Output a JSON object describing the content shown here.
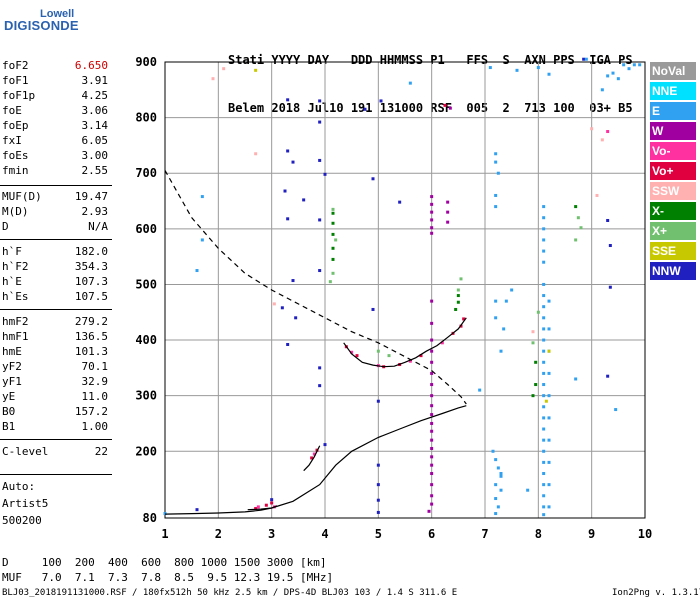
{
  "logo": {
    "line1": "Lowell",
    "line2": "DIGISONDE"
  },
  "header": {
    "row1": "Stati YYYY DAY   DDD HHMMSS P1   FFS  S  AXN PPS  IGA PS",
    "row2": "Belem 2018 Jul10 191 131000 RSF  005  2  713 100  03+ B5"
  },
  "params": [
    {
      "name": "foF2",
      "value": "6.650",
      "color": "#cc0000",
      "top": 58
    },
    {
      "name": "foF1",
      "value": "3.91",
      "top": 73
    },
    {
      "name": "foF1p",
      "value": "4.25",
      "top": 88
    },
    {
      "name": "foE",
      "value": "3.06",
      "top": 103
    },
    {
      "name": "foEp",
      "value": "3.14",
      "top": 118
    },
    {
      "name": "fxI",
      "value": "6.05",
      "top": 133
    },
    {
      "name": "foEs",
      "value": "3.00",
      "top": 148
    },
    {
      "name": "fmin",
      "value": "2.55",
      "top": 163
    },
    {
      "name": "MUF(D)",
      "value": "19.47",
      "top": 189
    },
    {
      "name": "M(D)",
      "value": "2.93",
      "top": 204
    },
    {
      "name": "D",
      "value": "N/A",
      "top": 219
    },
    {
      "name": "h`F",
      "value": "182.0",
      "top": 244
    },
    {
      "name": "h`F2",
      "value": "354.3",
      "top": 259
    },
    {
      "name": "h`E",
      "value": "107.3",
      "top": 274
    },
    {
      "name": "h`Es",
      "value": "107.5",
      "top": 289
    },
    {
      "name": "hmF2",
      "value": "279.2",
      "top": 314
    },
    {
      "name": "hmF1",
      "value": "136.5",
      "top": 329
    },
    {
      "name": "hmE",
      "value": "101.3",
      "top": 344
    },
    {
      "name": "yF2",
      "value": "70.1",
      "top": 359
    },
    {
      "name": "yF1",
      "value": "32.9",
      "top": 374
    },
    {
      "name": "yE",
      "value": "11.0",
      "top": 389
    },
    {
      "name": "B0",
      "value": "157.2",
      "top": 404
    },
    {
      "name": "B1",
      "value": "1.00",
      "top": 419
    },
    {
      "name": "C-level",
      "value": "22",
      "top": 444
    }
  ],
  "auto": {
    "line1": "Auto:",
    "line2": "Artist5",
    "line3": "500200"
  },
  "legend": [
    {
      "label": "NoVal",
      "color": "#9a9a9a"
    },
    {
      "label": "NNE",
      "color": "#00e0ff"
    },
    {
      "label": "E",
      "color": "#30a0f0"
    },
    {
      "label": "W",
      "color": "#a000a0"
    },
    {
      "label": "Vo-",
      "color": "#ff30a0"
    },
    {
      "label": "Vo+",
      "color": "#e00040"
    },
    {
      "label": "SSW",
      "color": "#ffb0b0"
    },
    {
      "label": "X-",
      "color": "#008000"
    },
    {
      "label": "X+",
      "color": "#70c070"
    },
    {
      "label": "SSE",
      "color": "#c8c800"
    },
    {
      "label": "NNW",
      "color": "#2020c0"
    }
  ],
  "footer": {
    "row1": "D     100  200  400  600  800 1000 1500 3000 [km]",
    "row2": "MUF   7.0  7.1  7.3  7.8  8.5  9.5 12.3 19.5 [MHz]",
    "filename": "BLJ03_2018191131000.RSF / 180fx512h 50 kHz 2.5 km / DPS-4D BLJ03 103 / 1.4 S 311.6 E",
    "version": "Ion2Png v. 1.3.17"
  },
  "chart_data": {
    "type": "scatter",
    "title": "",
    "xlabel": "",
    "ylabel": "",
    "xlim": [
      1,
      10
    ],
    "ylim": [
      80,
      900
    ],
    "x_ticks": [
      1,
      2,
      3,
      4,
      5,
      6,
      7,
      8,
      9,
      10
    ],
    "y_ticks": [
      80,
      200,
      300,
      400,
      500,
      600,
      700,
      800,
      900
    ],
    "curves": [
      {
        "name": "dashed-profile",
        "style": "dashed",
        "points": [
          [
            1.0,
            705
          ],
          [
            1.5,
            620
          ],
          [
            2.0,
            565
          ],
          [
            2.5,
            520
          ],
          [
            3.0,
            490
          ],
          [
            3.5,
            465
          ],
          [
            4.0,
            440
          ],
          [
            4.5,
            415
          ],
          [
            5.0,
            395
          ],
          [
            5.5,
            370
          ],
          [
            6.0,
            345
          ],
          [
            6.3,
            320
          ],
          [
            6.55,
            298
          ],
          [
            6.65,
            285
          ]
        ]
      },
      {
        "name": "true-height-profile",
        "style": "solid",
        "points": [
          [
            1.0,
            87
          ],
          [
            1.5,
            88
          ],
          [
            2.0,
            89
          ],
          [
            2.5,
            91
          ],
          [
            2.8,
            94
          ],
          [
            3.0,
            98
          ],
          [
            3.4,
            110
          ],
          [
            3.9,
            140
          ],
          [
            4.2,
            175
          ],
          [
            4.5,
            200
          ],
          [
            5.0,
            225
          ],
          [
            5.4,
            240
          ],
          [
            5.8,
            255
          ],
          [
            6.2,
            268
          ],
          [
            6.5,
            278
          ],
          [
            6.65,
            282
          ]
        ]
      },
      {
        "name": "F2-trace",
        "style": "solid",
        "points": [
          [
            4.35,
            395
          ],
          [
            4.5,
            375
          ],
          [
            4.7,
            360
          ],
          [
            4.9,
            355
          ],
          [
            5.1,
            352
          ],
          [
            5.3,
            353
          ],
          [
            5.5,
            360
          ],
          [
            5.7,
            368
          ],
          [
            5.9,
            380
          ],
          [
            6.1,
            390
          ],
          [
            6.3,
            405
          ],
          [
            6.5,
            420
          ],
          [
            6.65,
            440
          ]
        ]
      },
      {
        "name": "F1-trace",
        "style": "solid",
        "points": [
          [
            3.6,
            165
          ],
          [
            3.7,
            175
          ],
          [
            3.8,
            190
          ],
          [
            3.9,
            210
          ]
        ]
      },
      {
        "name": "E-trace",
        "style": "solid",
        "points": [
          [
            2.55,
            95
          ],
          [
            2.8,
            96
          ],
          [
            3.0,
            98
          ],
          [
            3.1,
            102
          ]
        ]
      }
    ],
    "echoes": [
      {
        "color": "#2020c0",
        "points": [
          [
            3.3,
            832
          ],
          [
            3.9,
            830
          ],
          [
            4.75,
            815
          ],
          [
            3.9,
            792
          ],
          [
            3.3,
            740
          ],
          [
            3.4,
            720
          ],
          [
            3.9,
            723
          ],
          [
            4.0,
            698
          ],
          [
            4.9,
            690
          ],
          [
            3.25,
            668
          ],
          [
            3.6,
            652
          ],
          [
            5.4,
            648
          ],
          [
            3.3,
            618
          ],
          [
            3.9,
            616
          ],
          [
            3.4,
            507
          ],
          [
            3.9,
            525
          ],
          [
            3.2,
            458
          ],
          [
            3.45,
            440
          ],
          [
            3.3,
            392
          ],
          [
            3.9,
            350
          ],
          [
            3.9,
            318
          ],
          [
            5.0,
            290
          ],
          [
            4.0,
            212
          ],
          [
            5.0,
            175
          ],
          [
            5.0,
            140
          ],
          [
            5.0,
            112
          ],
          [
            5.0,
            90
          ],
          [
            3.0,
            113
          ],
          [
            1.6,
            95
          ],
          [
            9.3,
            615
          ],
          [
            9.35,
            570
          ],
          [
            9.35,
            495
          ],
          [
            9.3,
            335
          ],
          [
            8.85,
            905
          ],
          [
            5.05,
            830
          ],
          [
            4.9,
            455
          ]
        ]
      },
      {
        "color": "#a000a0",
        "points": [
          [
            6.0,
            658
          ],
          [
            6.0,
            644
          ],
          [
            6.0,
            630
          ],
          [
            6.0,
            616
          ],
          [
            6.0,
            602
          ],
          [
            6.0,
            592
          ],
          [
            6.3,
            648
          ],
          [
            6.3,
            630
          ],
          [
            6.3,
            612
          ],
          [
            6.0,
            470
          ],
          [
            6.0,
            430
          ],
          [
            6.0,
            400
          ],
          [
            6.0,
            380
          ],
          [
            6.0,
            360
          ],
          [
            6.0,
            340
          ],
          [
            6.0,
            320
          ],
          [
            6.0,
            300
          ],
          [
            6.0,
            282
          ],
          [
            6.0,
            266
          ],
          [
            6.0,
            250
          ],
          [
            6.0,
            236
          ],
          [
            6.0,
            220
          ],
          [
            6.0,
            205
          ],
          [
            6.0,
            190
          ],
          [
            6.0,
            175
          ],
          [
            6.0,
            160
          ],
          [
            6.0,
            140
          ],
          [
            6.0,
            120
          ],
          [
            6.0,
            105
          ],
          [
            5.95,
            92
          ],
          [
            6.35,
            817
          ]
        ]
      },
      {
        "color": "#30a0f0",
        "points": [
          [
            8.1,
            500
          ],
          [
            8.1,
            480
          ],
          [
            8.1,
            460
          ],
          [
            8.1,
            440
          ],
          [
            8.1,
            420
          ],
          [
            8.1,
            400
          ],
          [
            8.1,
            380
          ],
          [
            8.1,
            360
          ],
          [
            8.1,
            340
          ],
          [
            8.1,
            320
          ],
          [
            8.1,
            300
          ],
          [
            8.1,
            280
          ],
          [
            8.1,
            260
          ],
          [
            8.1,
            240
          ],
          [
            8.1,
            220
          ],
          [
            8.1,
            200
          ],
          [
            8.1,
            180
          ],
          [
            8.1,
            160
          ],
          [
            8.1,
            140
          ],
          [
            8.1,
            120
          ],
          [
            8.1,
            100
          ],
          [
            8.1,
            86
          ],
          [
            8.2,
            470
          ],
          [
            8.2,
            420
          ],
          [
            8.2,
            380
          ],
          [
            8.2,
            340
          ],
          [
            8.2,
            300
          ],
          [
            8.2,
            260
          ],
          [
            8.2,
            220
          ],
          [
            8.2,
            180
          ],
          [
            8.2,
            140
          ],
          [
            8.2,
            100
          ],
          [
            7.2,
            735
          ],
          [
            7.2,
            720
          ],
          [
            7.25,
            700
          ],
          [
            7.2,
            660
          ],
          [
            7.2,
            640
          ],
          [
            7.2,
            470
          ],
          [
            7.2,
            440
          ],
          [
            7.15,
            200
          ],
          [
            7.2,
            185
          ],
          [
            7.25,
            170
          ],
          [
            7.3,
            155
          ],
          [
            7.2,
            140
          ],
          [
            7.3,
            130
          ],
          [
            7.2,
            115
          ],
          [
            7.25,
            100
          ],
          [
            7.2,
            88
          ],
          [
            7.35,
            420
          ],
          [
            7.3,
            380
          ],
          [
            7.4,
            470
          ],
          [
            7.5,
            490
          ],
          [
            8.1,
            640
          ],
          [
            8.1,
            620
          ],
          [
            8.1,
            600
          ],
          [
            8.1,
            580
          ],
          [
            8.1,
            560
          ],
          [
            8.1,
            540
          ],
          [
            8.7,
            330
          ],
          [
            9.4,
            880
          ],
          [
            9.5,
            870
          ],
          [
            9.6,
            895
          ],
          [
            9.7,
            888
          ],
          [
            9.9,
            895
          ],
          [
            9.2,
            850
          ],
          [
            9.3,
            875
          ],
          [
            9.45,
            275
          ],
          [
            7.1,
            890
          ],
          [
            7.6,
            885
          ],
          [
            8.0,
            890
          ],
          [
            8.2,
            878
          ],
          [
            7.3,
            160
          ],
          [
            7.8,
            130
          ],
          [
            1.7,
            658
          ],
          [
            1.6,
            525
          ],
          [
            1.7,
            580
          ],
          [
            1.0,
            88
          ],
          [
            6.9,
            310
          ],
          [
            8.9,
            905
          ],
          [
            9.8,
            895
          ],
          [
            5.6,
            862
          ]
        ]
      },
      {
        "color": "#e00040",
        "points": [
          [
            4.4,
            388
          ],
          [
            4.6,
            372
          ],
          [
            5.1,
            352
          ],
          [
            5.4,
            356
          ],
          [
            5.8,
            372
          ],
          [
            6.4,
            412
          ],
          [
            6.55,
            425
          ],
          [
            6.6,
            438
          ],
          [
            3.75,
            188
          ],
          [
            3.85,
            202
          ],
          [
            2.7,
            97
          ],
          [
            2.9,
            103
          ],
          [
            3.0,
            107
          ],
          [
            6.25,
            822
          ]
        ]
      },
      {
        "color": "#ff30a0",
        "points": [
          [
            4.5,
            378
          ],
          [
            5.0,
            354
          ],
          [
            5.6,
            362
          ],
          [
            6.2,
            395
          ],
          [
            3.8,
            195
          ],
          [
            2.75,
            100
          ],
          [
            3.05,
            100
          ],
          [
            9.3,
            775
          ]
        ]
      },
      {
        "color": "#ffb0b0",
        "points": [
          [
            9.0,
            780
          ],
          [
            9.2,
            760
          ],
          [
            2.1,
            888
          ],
          [
            2.7,
            735
          ],
          [
            1.9,
            870
          ],
          [
            3.05,
            465
          ],
          [
            9.1,
            660
          ],
          [
            7.9,
            415
          ]
        ]
      },
      {
        "color": "#008000",
        "points": [
          [
            4.15,
            628
          ],
          [
            4.15,
            610
          ],
          [
            4.15,
            590
          ],
          [
            4.15,
            565
          ],
          [
            4.15,
            545
          ],
          [
            6.5,
            480
          ],
          [
            6.5,
            468
          ],
          [
            6.45,
            455
          ],
          [
            8.7,
            640
          ],
          [
            7.95,
            360
          ],
          [
            7.95,
            320
          ],
          [
            7.9,
            300
          ]
        ]
      },
      {
        "color": "#70c070",
        "points": [
          [
            4.15,
            635
          ],
          [
            4.2,
            580
          ],
          [
            4.15,
            520
          ],
          [
            4.1,
            505
          ],
          [
            6.5,
            490
          ],
          [
            5.0,
            380
          ],
          [
            5.2,
            372
          ],
          [
            8.75,
            620
          ],
          [
            8.8,
            602
          ],
          [
            8.0,
            450
          ],
          [
            7.9,
            395
          ],
          [
            8.7,
            580
          ],
          [
            6.55,
            510
          ]
        ]
      },
      {
        "color": "#c8c800",
        "points": [
          [
            2.7,
            885
          ],
          [
            8.2,
            380
          ],
          [
            8.15,
            290
          ]
        ]
      }
    ]
  }
}
